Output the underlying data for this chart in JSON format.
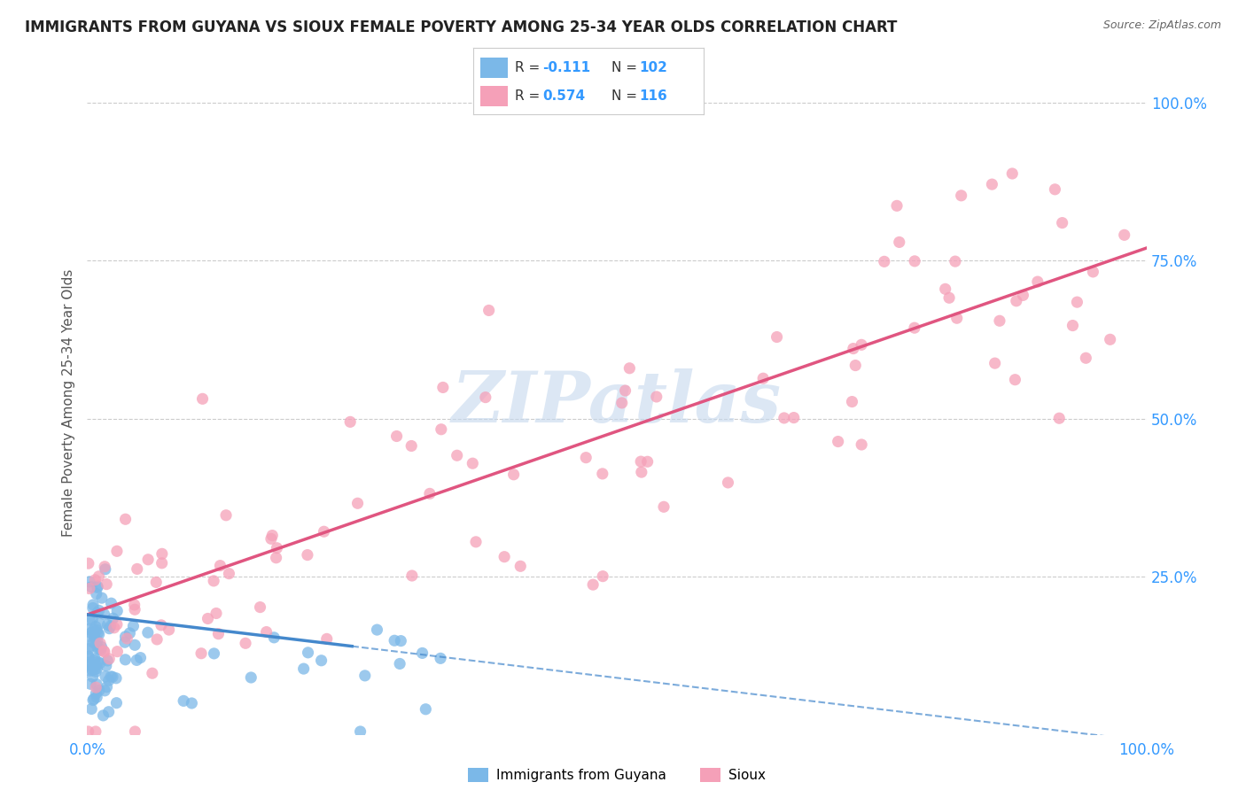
{
  "title": "IMMIGRANTS FROM GUYANA VS SIOUX FEMALE POVERTY AMONG 25-34 YEAR OLDS CORRELATION CHART",
  "source": "Source: ZipAtlas.com",
  "ylabel": "Female Poverty Among 25-34 Year Olds",
  "blue_label": "Immigrants from Guyana",
  "pink_label": "Sioux",
  "blue_R": -0.111,
  "blue_N": 102,
  "pink_R": 0.574,
  "pink_N": 116,
  "blue_color": "#7bb8e8",
  "pink_color": "#f5a0b8",
  "blue_line_color": "#4488cc",
  "pink_line_color": "#e05580",
  "background_color": "#ffffff",
  "watermark_color": "#c5d8ee",
  "title_color": "#222222",
  "source_color": "#666666",
  "tick_color": "#3399ff",
  "ylabel_color": "#555555",
  "legend_border_color": "#cccccc",
  "grid_color": "#cccccc"
}
